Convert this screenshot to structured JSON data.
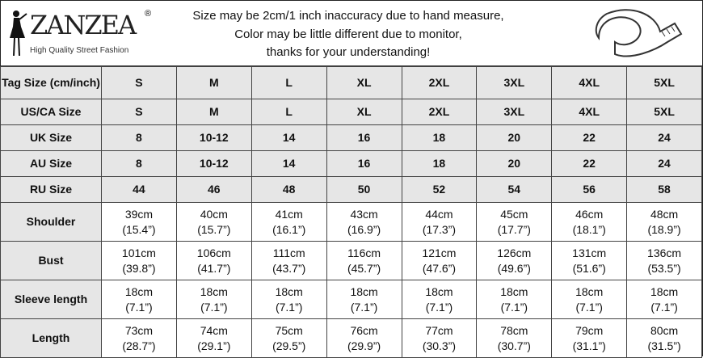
{
  "header": {
    "brand": "ZANZEA",
    "registered": "®",
    "tagline": "High Quality Street Fashion",
    "notice": [
      "Size may be 2cm/1 inch inaccuracy due to hand measure,",
      "Color may be little different due to monitor,",
      "thanks for your understanding!"
    ],
    "icons": [
      "fashion-figure-icon",
      "measuring-tape-icon"
    ]
  },
  "size_rows": [
    {
      "label": "Tag Size (cm/inch)",
      "values": [
        "S",
        "M",
        "L",
        "XL",
        "2XL",
        "3XL",
        "4XL",
        "5XL"
      ]
    },
    {
      "label": "US/CA Size",
      "values": [
        "S",
        "M",
        "L",
        "XL",
        "2XL",
        "3XL",
        "4XL",
        "5XL"
      ]
    },
    {
      "label": "UK Size",
      "values": [
        "8",
        "10-12",
        "14",
        "16",
        "18",
        "20",
        "22",
        "24"
      ]
    },
    {
      "label": "AU Size",
      "values": [
        "8",
        "10-12",
        "14",
        "16",
        "18",
        "20",
        "22",
        "24"
      ]
    },
    {
      "label": "RU Size",
      "values": [
        "44",
        "46",
        "48",
        "50",
        "52",
        "54",
        "56",
        "58"
      ]
    }
  ],
  "measure_rows": [
    {
      "label": "Shoulder",
      "cm": [
        "39cm",
        "40cm",
        "41cm",
        "43cm",
        "44cm",
        "45cm",
        "46cm",
        "48cm"
      ],
      "inch": [
        "(15.4”)",
        "(15.7”)",
        "(16.1”)",
        "(16.9”)",
        "(17.3”)",
        "(17.7”)",
        "(18.1”)",
        "(18.9”)"
      ]
    },
    {
      "label": "Bust",
      "cm": [
        "101cm",
        "106cm",
        "111cm",
        "116cm",
        "121cm",
        "126cm",
        "131cm",
        "136cm"
      ],
      "inch": [
        "(39.8”)",
        "(41.7”)",
        "(43.7”)",
        "(45.7”)",
        "(47.6”)",
        "(49.6”)",
        "(51.6”)",
        "(53.5”)"
      ]
    },
    {
      "label": "Sleeve length",
      "cm": [
        "18cm",
        "18cm",
        "18cm",
        "18cm",
        "18cm",
        "18cm",
        "18cm",
        "18cm"
      ],
      "inch": [
        "(7.1”)",
        "(7.1”)",
        "(7.1”)",
        "(7.1”)",
        "(7.1”)",
        "(7.1”)",
        "(7.1”)",
        "(7.1”)"
      ]
    },
    {
      "label": "Length",
      "cm": [
        "73cm",
        "74cm",
        "75cm",
        "76cm",
        "77cm",
        "78cm",
        "79cm",
        "80cm"
      ],
      "inch": [
        "(28.7”)",
        "(29.1”)",
        "(29.5”)",
        "(29.9”)",
        "(30.3”)",
        "(30.7”)",
        "(31.1”)",
        "(31.5”)"
      ]
    }
  ]
}
